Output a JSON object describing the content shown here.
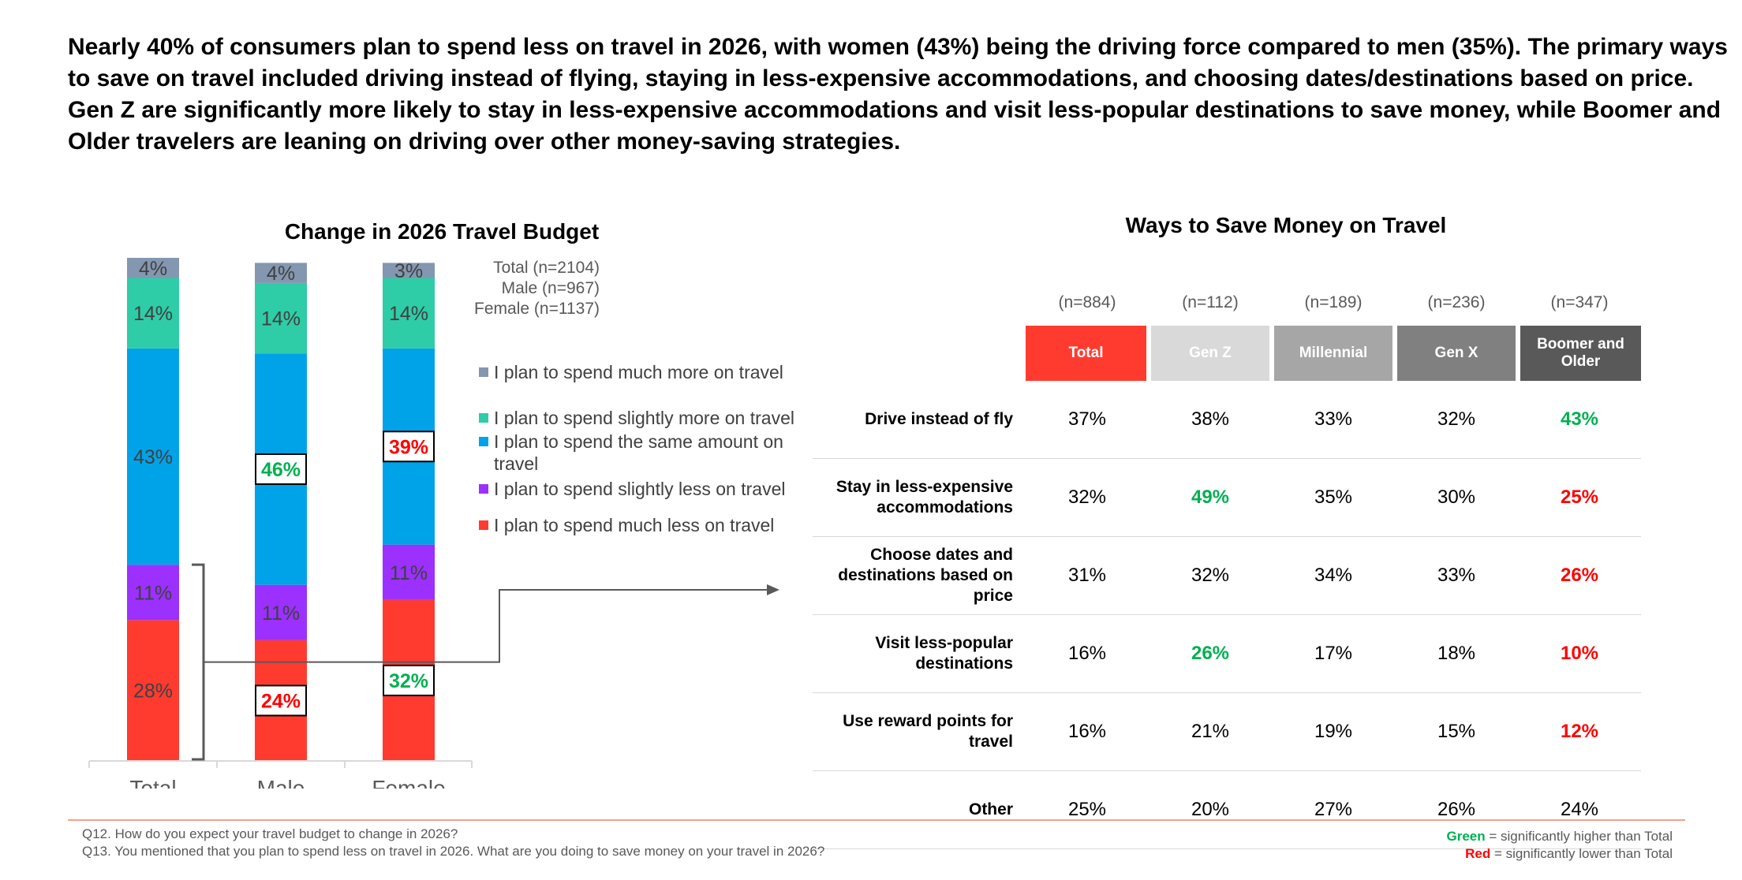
{
  "headline": "Nearly 40% of consumers plan to spend less on travel in 2026, with women (43%) being the driving force compared to men (35%). The primary ways to save on travel included driving instead of flying, staying in less-expensive accommodations, and choosing dates/destinations based on price. Gen Z are significantly more likely to stay in less-expensive accommodations and visit less-popular destinations to save money, while Boomer and Older travelers are leaning on driving over other money-saving strategies.",
  "colors": {
    "much_more": "#8497b0",
    "slightly_more": "#2ecca7",
    "same": "#00a2e8",
    "slightly_less": "#9b30ff",
    "much_less": "#ff3b30",
    "significant_higher": "#00b050",
    "significant_lower": "#ff0000",
    "header_total": "#ff3b30",
    "header_genz": "#d9d9d9",
    "header_millennial": "#a6a6a6",
    "header_genx": "#808080",
    "header_boomer": "#595959"
  },
  "chart_data": [
    {
      "type": "bar",
      "stacked": true,
      "title": "Change in 2026 Travel Budget",
      "categories": [
        "Total",
        "Male",
        "Female"
      ],
      "sample_sizes": [
        "Total (n=2104)",
        "Male (n=967)",
        "Female (n=1137)"
      ],
      "series": [
        {
          "name": "I plan to spend much less on travel",
          "key": "much_less",
          "values": [
            28,
            24,
            32
          ],
          "labels": [
            "28%",
            "24%",
            "32%"
          ],
          "highlight": [
            "none",
            "lower",
            "higher"
          ]
        },
        {
          "name": "I plan to spend slightly less on travel",
          "key": "slightly_less",
          "values": [
            11,
            11,
            11
          ],
          "labels": [
            "11%",
            "11%",
            "11%"
          ],
          "highlight": [
            "none",
            "none",
            "none"
          ]
        },
        {
          "name": "I plan to spend the same amount on travel",
          "key": "same",
          "values": [
            43,
            46,
            39
          ],
          "labels": [
            "43%",
            "46%",
            "39%"
          ],
          "highlight": [
            "none",
            "higher",
            "lower"
          ]
        },
        {
          "name": "I plan to spend slightly more on travel",
          "key": "slightly_more",
          "values": [
            14,
            14,
            14
          ],
          "labels": [
            "14%",
            "14%",
            "14%"
          ],
          "highlight": [
            "none",
            "none",
            "none"
          ]
        },
        {
          "name": "I plan to spend much more on travel",
          "key": "much_more",
          "values": [
            4,
            4,
            3
          ],
          "labels": [
            "4%",
            "4%",
            "3%"
          ],
          "highlight": [
            "none",
            "none",
            "none"
          ]
        }
      ],
      "legend_order": [
        "much_more",
        "slightly_more",
        "same",
        "slightly_less",
        "much_less"
      ],
      "ylim": [
        0,
        100
      ]
    },
    {
      "type": "table",
      "title": "Ways to Save Money on Travel",
      "columns": [
        {
          "label": "Total",
          "n": "(n=884)"
        },
        {
          "label": "Gen Z",
          "n": "(n=112)"
        },
        {
          "label": "Millennial",
          "n": "(n=189)"
        },
        {
          "label": "Gen X",
          "n": "(n=236)"
        },
        {
          "label": "Boomer and Older",
          "n": "(n=347)"
        }
      ],
      "rows": [
        {
          "label": "Drive instead of fly",
          "values": [
            "37%",
            "38%",
            "33%",
            "32%",
            "43%"
          ],
          "sig": [
            "",
            "",
            "",
            "",
            "g"
          ]
        },
        {
          "label": "Stay in less-expensive accommodations",
          "values": [
            "32%",
            "49%",
            "35%",
            "30%",
            "25%"
          ],
          "sig": [
            "",
            "g",
            "",
            "",
            "r"
          ]
        },
        {
          "label": "Choose dates and destinations based on price",
          "values": [
            "31%",
            "32%",
            "34%",
            "33%",
            "26%"
          ],
          "sig": [
            "",
            "",
            "",
            "",
            "r"
          ]
        },
        {
          "label": "Visit less-popular destinations",
          "values": [
            "16%",
            "26%",
            "17%",
            "18%",
            "10%"
          ],
          "sig": [
            "",
            "g",
            "",
            "",
            "r"
          ]
        },
        {
          "label": "Use reward points for travel",
          "values": [
            "16%",
            "21%",
            "19%",
            "15%",
            "12%"
          ],
          "sig": [
            "",
            "",
            "",
            "",
            "r"
          ]
        },
        {
          "label": "Other",
          "values": [
            "25%",
            "20%",
            "27%",
            "26%",
            "24%"
          ],
          "sig": [
            "",
            "",
            "",
            "",
            ""
          ]
        }
      ]
    }
  ],
  "footnotes": {
    "q12": "Q12. How do you expect your travel budget to change in 2026?",
    "q13": "Q13. You mentioned that you plan to spend less on travel in 2026. What are you doing to save money on your travel in 2026?"
  },
  "significance_legend": {
    "green_word": "Green",
    "green_text": "= significantly higher than Total",
    "red_word": "Red",
    "red_text": "= significantly lower than Total"
  }
}
